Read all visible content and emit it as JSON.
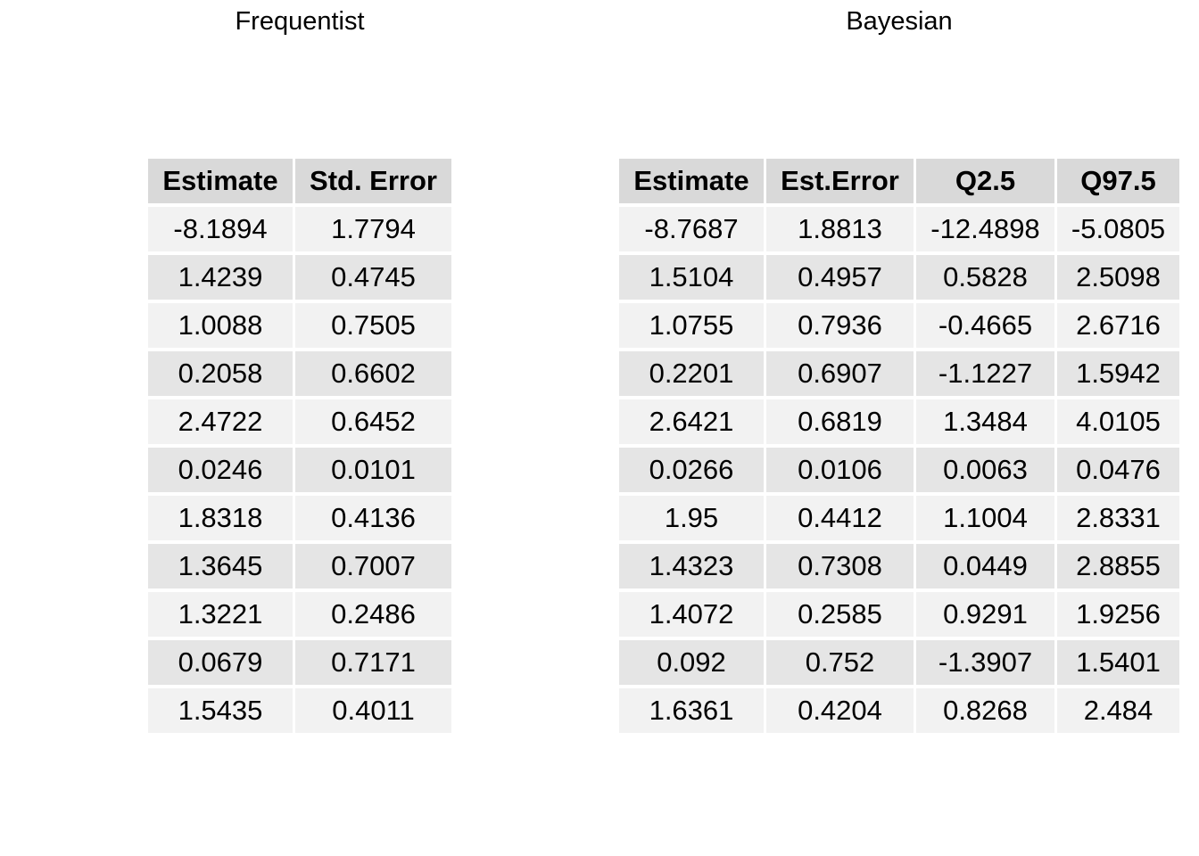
{
  "chart_data": [
    {
      "type": "table",
      "title": "Frequentist",
      "columns": [
        "Estimate",
        "Std. Error"
      ],
      "rows": [
        [
          "-8.1894",
          "1.7794"
        ],
        [
          "1.4239",
          "0.4745"
        ],
        [
          "1.0088",
          "0.7505"
        ],
        [
          "0.2058",
          "0.6602"
        ],
        [
          "2.4722",
          "0.6452"
        ],
        [
          "0.0246",
          "0.0101"
        ],
        [
          "1.8318",
          "0.4136"
        ],
        [
          "1.3645",
          "0.7007"
        ],
        [
          "1.3221",
          "0.2486"
        ],
        [
          "0.0679",
          "0.7171"
        ],
        [
          "1.5435",
          "0.4011"
        ]
      ]
    },
    {
      "type": "table",
      "title": "Bayesian",
      "columns": [
        "Estimate",
        "Est.Error",
        "Q2.5",
        "Q97.5"
      ],
      "rows": [
        [
          "-8.7687",
          "1.8813",
          "-12.4898",
          "-5.0805"
        ],
        [
          "1.5104",
          "0.4957",
          "0.5828",
          "2.5098"
        ],
        [
          "1.0755",
          "0.7936",
          "-0.4665",
          "2.6716"
        ],
        [
          "0.2201",
          "0.6907",
          "-1.1227",
          "1.5942"
        ],
        [
          "2.6421",
          "0.6819",
          "1.3484",
          "4.0105"
        ],
        [
          "0.0266",
          "0.0106",
          "0.0063",
          "0.0476"
        ],
        [
          "1.95",
          "0.4412",
          "1.1004",
          "2.8331"
        ],
        [
          "1.4323",
          "0.7308",
          "0.0449",
          "2.8855"
        ],
        [
          "1.4072",
          "0.2585",
          "0.9291",
          "1.9256"
        ],
        [
          "0.092",
          "0.752",
          "-1.3907",
          "1.5401"
        ],
        [
          "1.6361",
          "0.4204",
          "0.8268",
          "2.484"
        ]
      ]
    }
  ]
}
